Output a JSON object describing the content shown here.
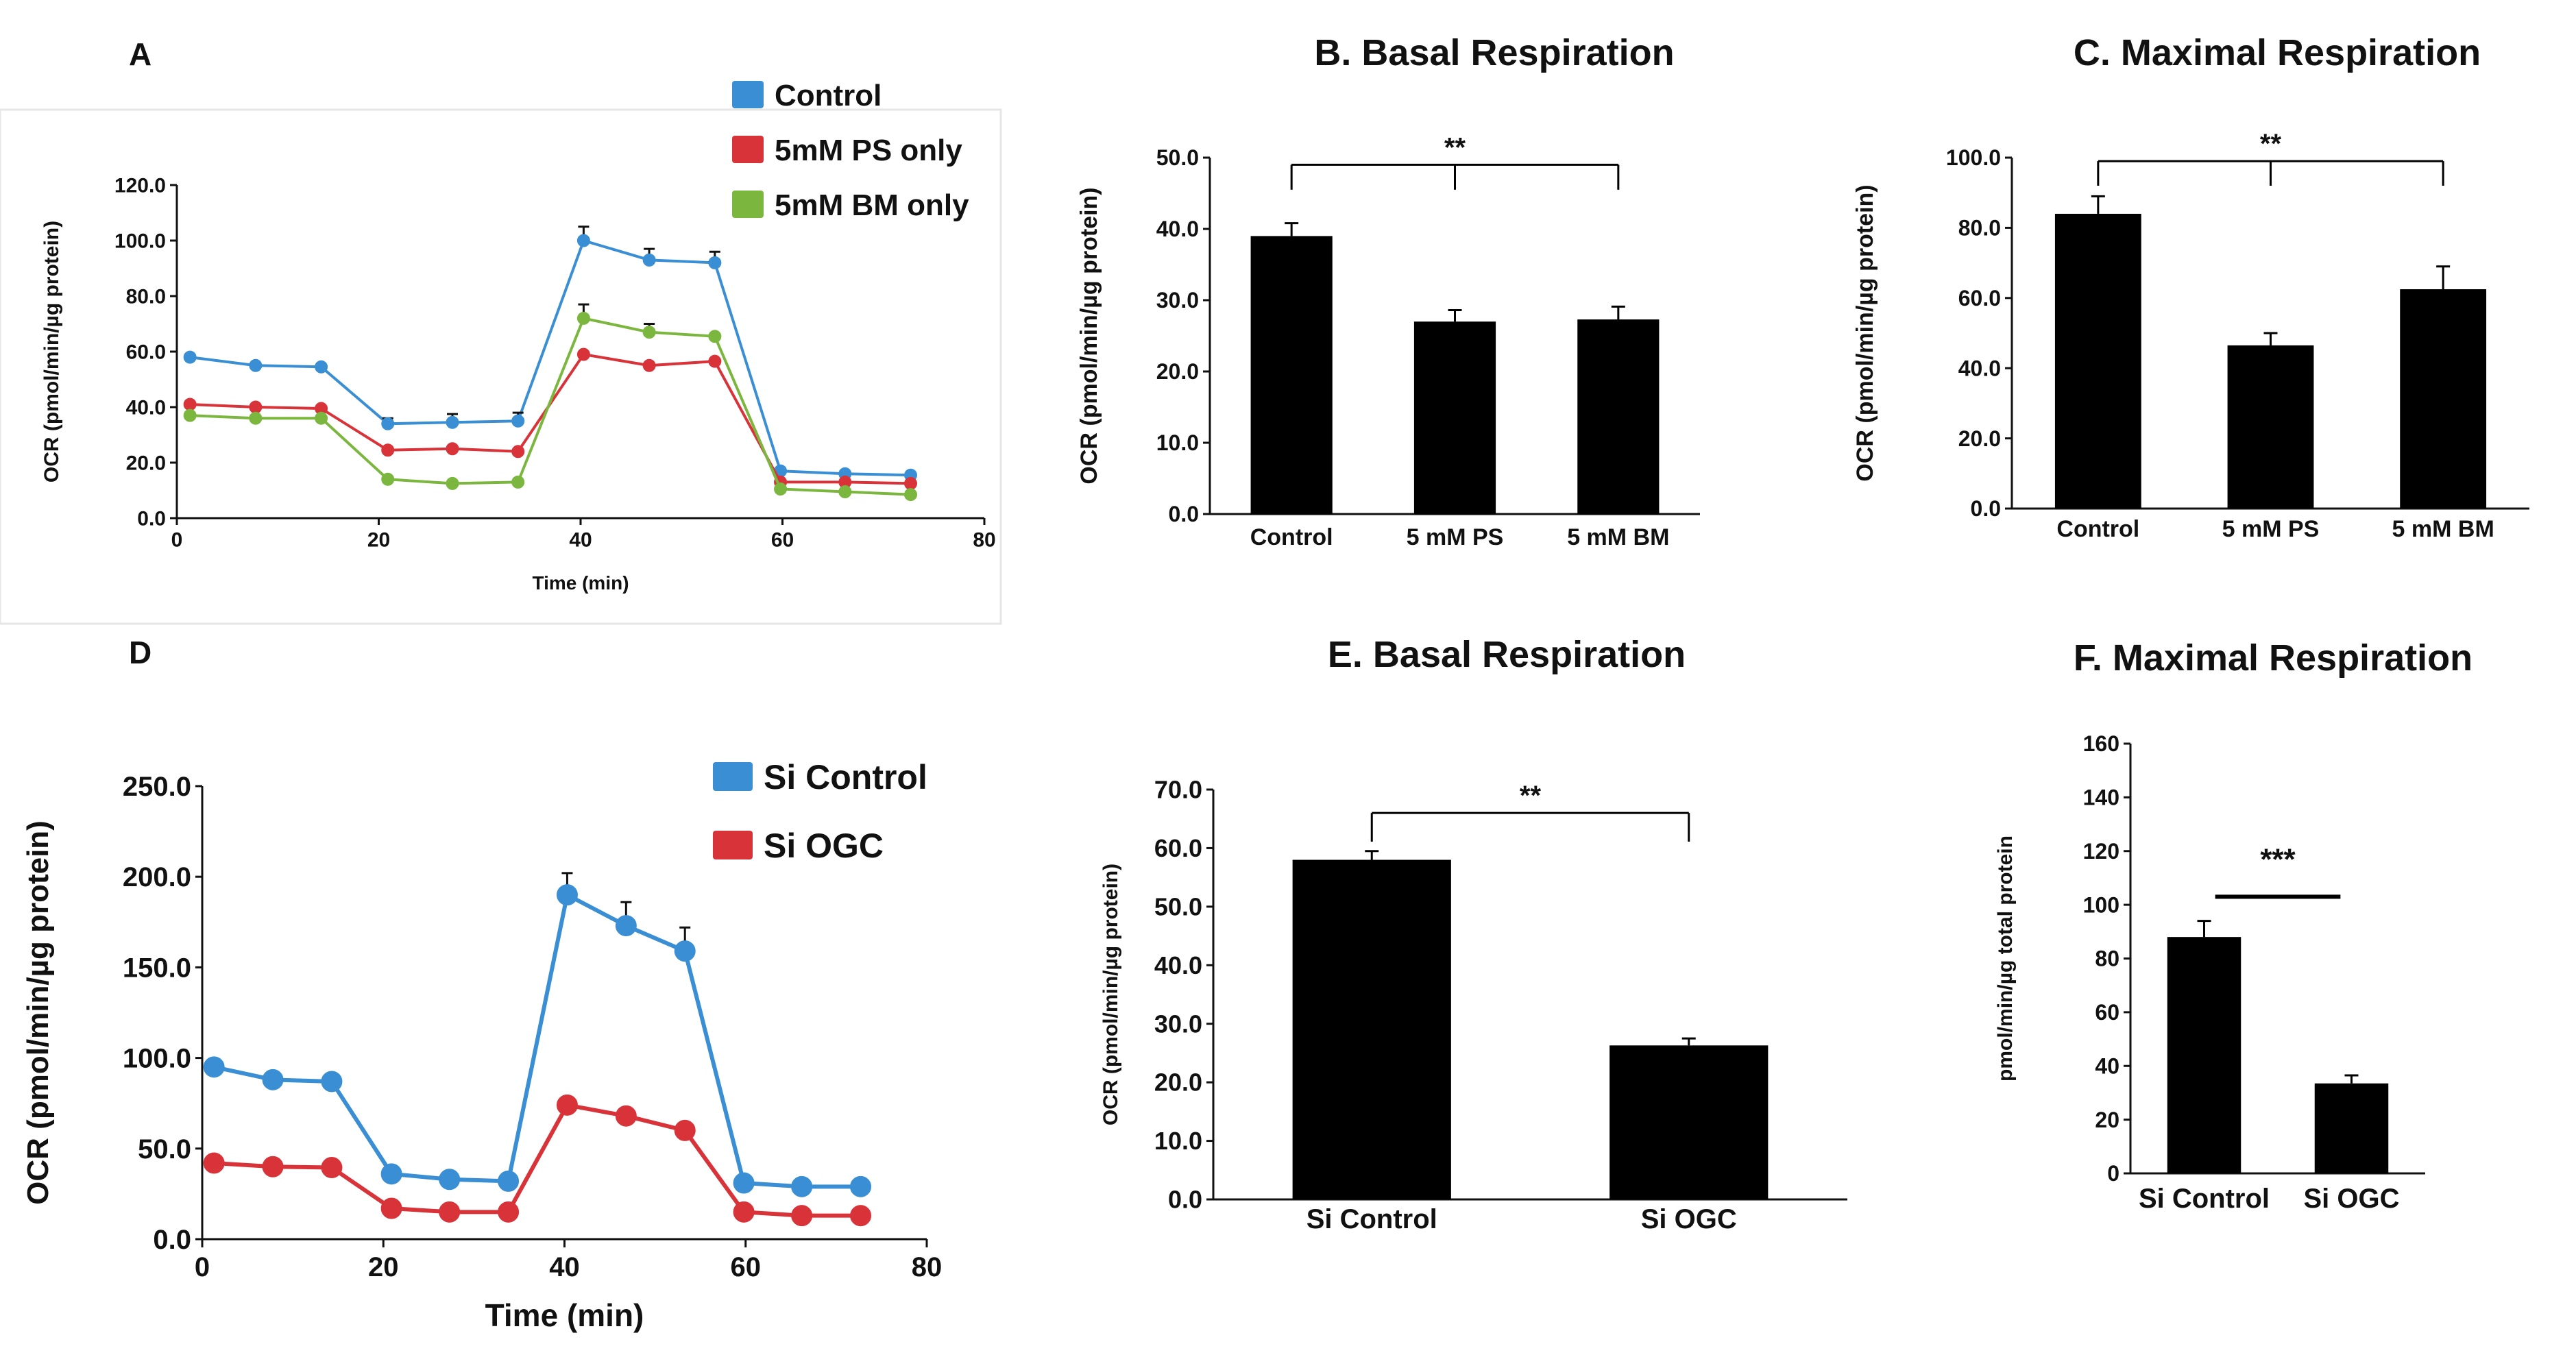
{
  "panel_letters": [
    "A",
    "D"
  ],
  "chart_data": [
    {
      "id": "A",
      "type": "line",
      "title": "",
      "xlabel": "Time (min)",
      "ylabel": "OCR (pmol/min/µg protein)",
      "xlim": [
        0,
        80
      ],
      "ylim": [
        0,
        120
      ],
      "x_ticks": [
        0,
        20,
        40,
        60,
        80
      ],
      "x_tick_labels": [
        "0",
        "20",
        "40",
        "60",
        "80"
      ],
      "y_ticks": [
        0,
        20,
        40,
        60,
        80,
        100,
        120
      ],
      "y_tick_labels": [
        "0.0",
        "20.0",
        "40.0",
        "60.0",
        "80.0",
        "100.0",
        "120.0"
      ],
      "x": [
        1.3,
        7.8,
        14.3,
        20.9,
        27.3,
        33.8,
        40.3,
        46.8,
        53.3,
        59.8,
        66.2,
        72.7
      ],
      "legend": "top-right",
      "series": [
        {
          "name": "Control",
          "color": "#3a8fd4",
          "values": [
            58,
            55,
            54.5,
            34,
            34.5,
            35,
            100,
            93,
            92,
            17,
            16,
            15.5
          ],
          "errors": [
            0,
            0,
            0,
            2,
            3,
            3,
            5,
            4,
            4,
            0,
            0,
            0
          ]
        },
        {
          "name": "5mM PS only",
          "color": "#d9333a",
          "values": [
            41,
            40,
            39.5,
            24.5,
            25,
            24,
            59,
            55,
            56.5,
            13,
            13,
            12.5
          ],
          "errors": [
            0,
            0,
            0,
            0,
            0,
            0,
            0,
            0,
            0,
            0,
            0,
            0
          ]
        },
        {
          "name": "5mM BM only",
          "color": "#7bb73e",
          "values": [
            37,
            36,
            36,
            14,
            12.5,
            13,
            72,
            67,
            65.5,
            10.5,
            9.5,
            8.5
          ],
          "errors": [
            0,
            0,
            0,
            0,
            0,
            0,
            5,
            3,
            0,
            0,
            0,
            0
          ]
        }
      ]
    },
    {
      "id": "B",
      "type": "bar",
      "title": "B. Basal Respiration",
      "xlabel": "",
      "ylabel": "OCR (pmol/min/µg protein)",
      "ylim": [
        0,
        50
      ],
      "y_ticks": [
        0,
        10,
        20,
        30,
        40,
        50
      ],
      "y_tick_labels": [
        "0.0",
        "10.0",
        "20.0",
        "30.0",
        "40.0",
        "50.0"
      ],
      "categories": [
        "Control",
        "5 mM PS",
        "5 mM BM"
      ],
      "values": [
        39,
        27,
        27.3
      ],
      "errors": [
        1.8,
        1.6,
        1.8
      ],
      "significance": {
        "label": "**",
        "style": "bracket",
        "from": 0,
        "to": [
          1,
          2
        ],
        "level": 49
      }
    },
    {
      "id": "C",
      "type": "bar",
      "title": "C. Maximal Respiration",
      "xlabel": "",
      "ylabel": "OCR (pmol/min/µg protein)",
      "ylim": [
        0,
        100
      ],
      "y_ticks": [
        0,
        20,
        40,
        60,
        80,
        100
      ],
      "y_tick_labels": [
        "0.0",
        "20.0",
        "40.0",
        "60.0",
        "80.0",
        "100.0"
      ],
      "categories": [
        "Control",
        "5 mM PS",
        "5 mM BM"
      ],
      "values": [
        84,
        46.5,
        62.5
      ],
      "errors": [
        5,
        3.5,
        6.5
      ],
      "significance": {
        "label": "**",
        "style": "bracket",
        "from": 0,
        "to": [
          1,
          2
        ],
        "level": 99
      }
    },
    {
      "id": "D",
      "type": "line",
      "title": "",
      "xlabel": "Time (min)",
      "ylabel": "OCR (pmol/min/µg protein)",
      "xlim": [
        0,
        80
      ],
      "ylim": [
        0,
        250
      ],
      "x_ticks": [
        0,
        20,
        40,
        60,
        80
      ],
      "x_tick_labels": [
        "0",
        "20",
        "40",
        "60",
        "80"
      ],
      "y_ticks": [
        0,
        50,
        100,
        150,
        200,
        250
      ],
      "y_tick_labels": [
        "0.0",
        "50.0",
        "100.0",
        "150.0",
        "200.0",
        "250.0"
      ],
      "x": [
        1.3,
        7.8,
        14.3,
        20.9,
        27.3,
        33.8,
        40.3,
        46.8,
        53.3,
        59.8,
        66.2,
        72.7
      ],
      "legend": "top-right",
      "series": [
        {
          "name": "Si Control",
          "color": "#3a8fd4",
          "values": [
            95,
            88,
            87,
            36,
            33,
            32,
            190,
            173,
            159,
            31,
            29,
            29
          ],
          "errors": [
            0,
            0,
            0,
            0,
            0,
            0,
            12,
            13,
            13,
            0,
            0,
            0
          ]
        },
        {
          "name": "Si OGC",
          "color": "#d9333a",
          "values": [
            42,
            40,
            39.5,
            17,
            15,
            15,
            74,
            68,
            60,
            15,
            13,
            13
          ],
          "errors": [
            0,
            0,
            0,
            0,
            0,
            0,
            0,
            0,
            0,
            0,
            0,
            0
          ]
        }
      ]
    },
    {
      "id": "E",
      "type": "bar",
      "title": "E. Basal Respiration",
      "xlabel": "",
      "ylabel": "OCR (pmol/min/µg  protein)",
      "ylim": [
        0,
        70
      ],
      "y_ticks": [
        0,
        10,
        20,
        30,
        40,
        50,
        60,
        70
      ],
      "y_tick_labels": [
        "0.0",
        "10.0",
        "20.0",
        "30.0",
        "40.0",
        "50.0",
        "60.0",
        "70.0"
      ],
      "categories": [
        "Si Control",
        "Si OGC"
      ],
      "values": [
        58,
        26.3
      ],
      "errors": [
        1.5,
        1.2
      ],
      "significance": {
        "label": "**",
        "style": "bracket",
        "from": 0,
        "to": [
          1
        ],
        "level": 66
      }
    },
    {
      "id": "F",
      "type": "bar",
      "title": "F. Maximal Respiration",
      "xlabel": "",
      "ylabel": "pmol/min/µg total protein",
      "ylim": [
        0,
        160
      ],
      "y_ticks": [
        0,
        20,
        40,
        60,
        80,
        100,
        120,
        140,
        160
      ],
      "y_tick_labels": [
        "0",
        "20",
        "40",
        "60",
        "80",
        "100",
        "120",
        "140",
        "160"
      ],
      "categories": [
        "Si Control",
        "Si OGC"
      ],
      "values": [
        88,
        33.5
      ],
      "errors": [
        6,
        3
      ],
      "significance": {
        "label": "***",
        "style": "line",
        "from": 0,
        "to": [
          1
        ],
        "level": 103
      }
    }
  ]
}
